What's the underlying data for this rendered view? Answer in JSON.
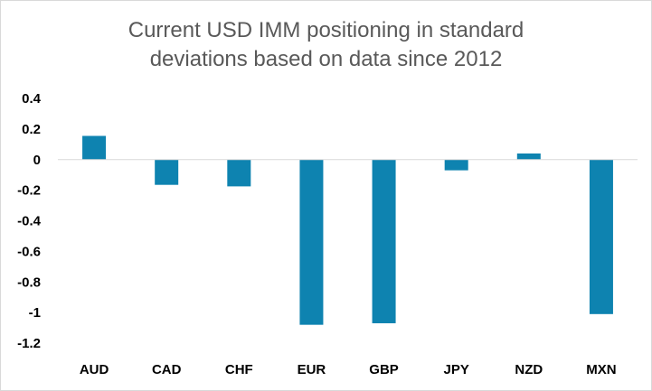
{
  "chart_data": {
    "type": "bar",
    "title_lines": [
      "Current USD IMM positioning in standard",
      "deviations based on data since 2012"
    ],
    "categories": [
      "AUD",
      "CAD",
      "CHF",
      "EUR",
      "GBP",
      "JPY",
      "NZD",
      "MXN"
    ],
    "values": [
      0.155,
      -0.165,
      -0.175,
      -1.08,
      -1.07,
      -0.07,
      0.04,
      -1.01
    ],
    "ylim": [
      -1.2,
      0.4
    ],
    "yticks": [
      0.4,
      0.2,
      0,
      -0.2,
      -0.4,
      -0.6,
      -0.8,
      -1,
      -1.2
    ],
    "ytick_labels": [
      "0.4",
      "0.2",
      "0",
      "-0.2",
      "-0.4",
      "-0.6",
      "-0.8",
      "-1",
      "-1.2"
    ],
    "xlabel": "",
    "ylabel": "",
    "grid": false,
    "legend": "none",
    "bar_color": "#0E83B0",
    "axis_color": "#D9D9D9"
  }
}
